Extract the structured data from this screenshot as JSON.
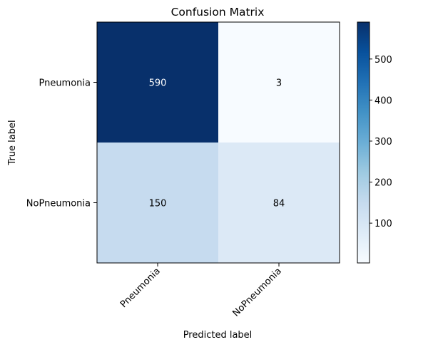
{
  "chart_data": {
    "type": "heatmap",
    "title": "Confusion Matrix",
    "xlabel": "Predicted label",
    "ylabel": "True label",
    "x_categories": [
      "Pneumonia",
      "NoPneumonia"
    ],
    "y_categories": [
      "Pneumonia",
      "NoPneumonia"
    ],
    "values": [
      [
        590,
        3
      ],
      [
        150,
        84
      ]
    ],
    "colormap": "Blues",
    "colorbar": {
      "range": [
        3,
        590
      ],
      "ticks": [
        100,
        200,
        300,
        400,
        500
      ]
    },
    "text_colors": {
      "on_dark": "#ffffff",
      "on_light": "#000000"
    },
    "grid": false
  }
}
